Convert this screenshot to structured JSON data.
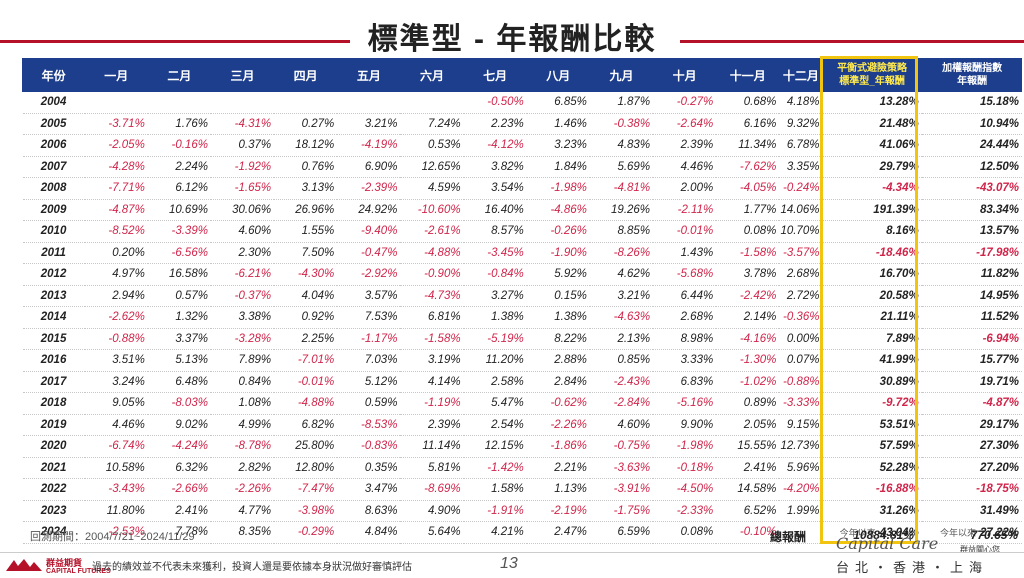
{
  "title": "標準型 - 年報酬比較",
  "headers": {
    "year": "年份",
    "months": [
      "一月",
      "二月",
      "三月",
      "四月",
      "五月",
      "六月",
      "七月",
      "八月",
      "九月",
      "十月",
      "十一月",
      "十二月"
    ],
    "strategy_line1": "平衡式避險策略",
    "strategy_line2": "標準型_年報酬",
    "index_line1": "加權報酬指數",
    "index_line2": "年報酬"
  },
  "rows": [
    {
      "year": "2004",
      "m": [
        "",
        "",
        "",
        "",
        "",
        "",
        "-0.50%",
        "6.85%",
        "1.87%",
        "-0.27%",
        "0.68%",
        "4.18%"
      ],
      "s": "13.28%",
      "i": "15.18%"
    },
    {
      "year": "2005",
      "m": [
        "-3.71%",
        "1.76%",
        "-4.31%",
        "0.27%",
        "3.21%",
        "7.24%",
        "2.23%",
        "1.46%",
        "-0.38%",
        "-2.64%",
        "6.16%",
        "9.32%"
      ],
      "s": "21.48%",
      "i": "10.94%"
    },
    {
      "year": "2006",
      "m": [
        "-2.05%",
        "-0.16%",
        "0.37%",
        "18.12%",
        "-4.19%",
        "0.53%",
        "-4.12%",
        "3.23%",
        "4.83%",
        "2.39%",
        "11.34%",
        "6.78%"
      ],
      "s": "41.06%",
      "i": "24.44%"
    },
    {
      "year": "2007",
      "m": [
        "-4.28%",
        "2.24%",
        "-1.92%",
        "0.76%",
        "6.90%",
        "12.65%",
        "3.82%",
        "1.84%",
        "5.69%",
        "4.46%",
        "-7.62%",
        "3.35%"
      ],
      "s": "29.79%",
      "i": "12.50%"
    },
    {
      "year": "2008",
      "m": [
        "-7.71%",
        "6.12%",
        "-1.65%",
        "3.13%",
        "-2.39%",
        "4.59%",
        "3.54%",
        "-1.98%",
        "-4.81%",
        "2.00%",
        "-4.05%",
        "-0.24%"
      ],
      "s": "-4.34%",
      "i": "-43.07%"
    },
    {
      "year": "2009",
      "m": [
        "-4.87%",
        "10.69%",
        "30.06%",
        "26.96%",
        "24.92%",
        "-10.60%",
        "16.40%",
        "-4.86%",
        "19.26%",
        "-2.11%",
        "1.77%",
        "14.06%"
      ],
      "s": "191.39%",
      "i": "83.34%"
    },
    {
      "year": "2010",
      "m": [
        "-8.52%",
        "-3.39%",
        "4.60%",
        "1.55%",
        "-9.40%",
        "-2.61%",
        "8.57%",
        "-0.26%",
        "8.85%",
        "-0.01%",
        "0.08%",
        "10.70%"
      ],
      "s": "8.16%",
      "i": "13.57%"
    },
    {
      "year": "2011",
      "m": [
        "0.20%",
        "-6.56%",
        "2.30%",
        "7.50%",
        "-0.47%",
        "-4.88%",
        "-3.45%",
        "-1.90%",
        "-8.26%",
        "1.43%",
        "-1.58%",
        "-3.57%"
      ],
      "s": "-18.46%",
      "i": "-17.98%"
    },
    {
      "year": "2012",
      "m": [
        "4.97%",
        "16.58%",
        "-6.21%",
        "-4.30%",
        "-2.92%",
        "-0.90%",
        "-0.84%",
        "5.92%",
        "4.62%",
        "-5.68%",
        "3.78%",
        "2.68%"
      ],
      "s": "16.70%",
      "i": "11.82%"
    },
    {
      "year": "2013",
      "m": [
        "2.94%",
        "0.57%",
        "-0.37%",
        "4.04%",
        "3.57%",
        "-4.73%",
        "3.27%",
        "0.15%",
        "3.21%",
        "6.44%",
        "-2.42%",
        "2.72%"
      ],
      "s": "20.58%",
      "i": "14.95%"
    },
    {
      "year": "2014",
      "m": [
        "-2.62%",
        "1.32%",
        "3.38%",
        "0.92%",
        "7.53%",
        "6.81%",
        "1.38%",
        "1.38%",
        "-4.63%",
        "2.68%",
        "2.14%",
        "-0.36%"
      ],
      "s": "21.11%",
      "i": "11.52%"
    },
    {
      "year": "2015",
      "m": [
        "-0.88%",
        "3.37%",
        "-3.28%",
        "2.25%",
        "-1.17%",
        "-1.58%",
        "-5.19%",
        "8.22%",
        "2.13%",
        "8.98%",
        "-4.16%",
        "0.00%"
      ],
      "s": "7.89%",
      "i": "-6.94%"
    },
    {
      "year": "2016",
      "m": [
        "3.51%",
        "5.13%",
        "7.89%",
        "-7.01%",
        "7.03%",
        "3.19%",
        "11.20%",
        "2.88%",
        "0.85%",
        "3.33%",
        "-1.30%",
        "0.07%"
      ],
      "s": "41.99%",
      "i": "15.77%"
    },
    {
      "year": "2017",
      "m": [
        "3.24%",
        "6.48%",
        "0.84%",
        "-0.01%",
        "5.12%",
        "4.14%",
        "2.58%",
        "2.84%",
        "-2.43%",
        "6.83%",
        "-1.02%",
        "-0.88%"
      ],
      "s": "30.89%",
      "i": "19.71%"
    },
    {
      "year": "2018",
      "m": [
        "9.05%",
        "-8.03%",
        "1.08%",
        "-4.88%",
        "0.59%",
        "-1.19%",
        "5.47%",
        "-0.62%",
        "-2.84%",
        "-5.16%",
        "0.89%",
        "-3.33%"
      ],
      "s": "-9.72%",
      "i": "-4.87%"
    },
    {
      "year": "2019",
      "m": [
        "4.46%",
        "9.02%",
        "4.99%",
        "6.82%",
        "-8.53%",
        "2.39%",
        "2.54%",
        "-2.26%",
        "4.60%",
        "9.90%",
        "2.05%",
        "9.15%"
      ],
      "s": "53.51%",
      "i": "29.17%"
    },
    {
      "year": "2020",
      "m": [
        "-6.74%",
        "-4.24%",
        "-8.78%",
        "25.80%",
        "-0.83%",
        "11.14%",
        "12.15%",
        "-1.86%",
        "-0.75%",
        "-1.98%",
        "15.55%",
        "12.73%"
      ],
      "s": "57.59%",
      "i": "27.30%"
    },
    {
      "year": "2021",
      "m": [
        "10.58%",
        "6.32%",
        "2.82%",
        "12.80%",
        "0.35%",
        "5.81%",
        "-1.42%",
        "2.21%",
        "-3.63%",
        "-0.18%",
        "2.41%",
        "5.96%"
      ],
      "s": "52.28%",
      "i": "27.20%"
    },
    {
      "year": "2022",
      "m": [
        "-3.43%",
        "-2.66%",
        "-2.26%",
        "-7.47%",
        "3.47%",
        "-8.69%",
        "1.58%",
        "1.13%",
        "-3.91%",
        "-4.50%",
        "14.58%",
        "-4.20%"
      ],
      "s": "-16.88%",
      "i": "-18.75%"
    },
    {
      "year": "2023",
      "m": [
        "11.80%",
        "2.41%",
        "4.77%",
        "-3.98%",
        "8.63%",
        "4.90%",
        "-1.91%",
        "-2.19%",
        "-1.75%",
        "-2.33%",
        "6.52%",
        "1.99%"
      ],
      "s": "31.26%",
      "i": "31.49%"
    },
    {
      "year": "2024",
      "m": [
        "-2.53%",
        "7.78%",
        "8.35%",
        "-0.29%",
        "4.84%",
        "5.64%",
        "4.21%",
        "2.47%",
        "6.59%",
        "0.08%",
        "-0.10%",
        ""
      ],
      "s": "43.04%",
      "i": "27.22%",
      "snote": "今年以來",
      "inote": "今年以來"
    }
  ],
  "period_label": "回測期間：2004/7/21~2024/11/29",
  "total_label": "總報酬",
  "total_strategy": "10884.81%",
  "total_index": "770.65%",
  "footer": {
    "company": "群益期貨",
    "company_en": "CAPITAL FUTURES",
    "disclaimer": "過去的績效並不代表未來獲利，投資人還是要依據本身狀況做好審慎評估",
    "page": "13",
    "cities": "台北・香港・上海",
    "script_logo": "Capital Care",
    "script_sub": "群益關心您"
  },
  "colors": {
    "header_bg": "#1d3e8c",
    "negative": "#d0254a",
    "highlight_border": "#f1c40f",
    "accent": "#b5122a"
  }
}
